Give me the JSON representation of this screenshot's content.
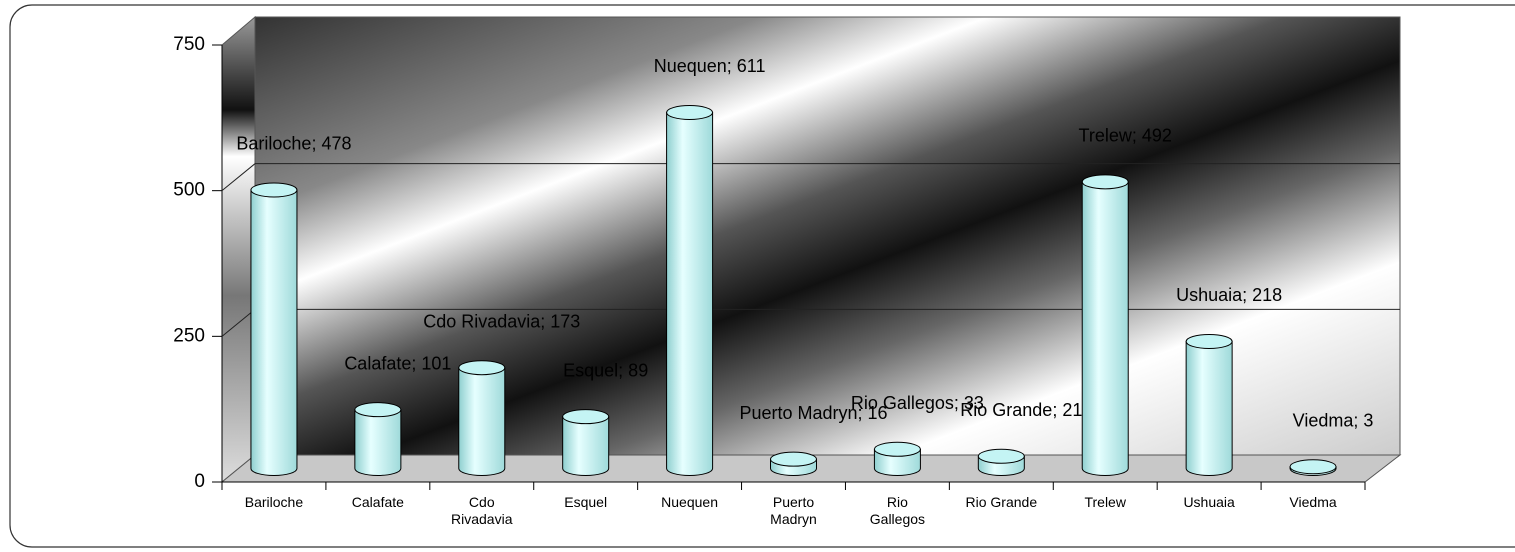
{
  "chart_data": {
    "type": "bar",
    "categories": [
      "Bariloche",
      "Calafate",
      "Cdo Rivadavia",
      "Esquel",
      "Nuequen",
      "Puerto Madryn",
      "Rio Gallegos",
      "Rio Grande",
      "Trelew",
      "Ushuaia",
      "Viedma"
    ],
    "values": [
      478,
      101,
      173,
      89,
      611,
      16,
      33,
      21,
      492,
      218,
      3
    ],
    "value_labels": [
      "Bariloche; 478",
      "Calafate; 101",
      "Cdo Rivadavia; 173",
      "Esquel; 89",
      "Nuequen; 611",
      "Puerto Madryn; 16",
      "Rio Gallegos; 33",
      "Rio Grande; 21",
      "Trelew; 492",
      "Ushuaia; 218",
      "Viedma; 3"
    ],
    "color": "#c4f4f4",
    "ylim": [
      0,
      750
    ],
    "yticks": [
      0,
      250,
      500,
      750
    ],
    "grid": true
  }
}
